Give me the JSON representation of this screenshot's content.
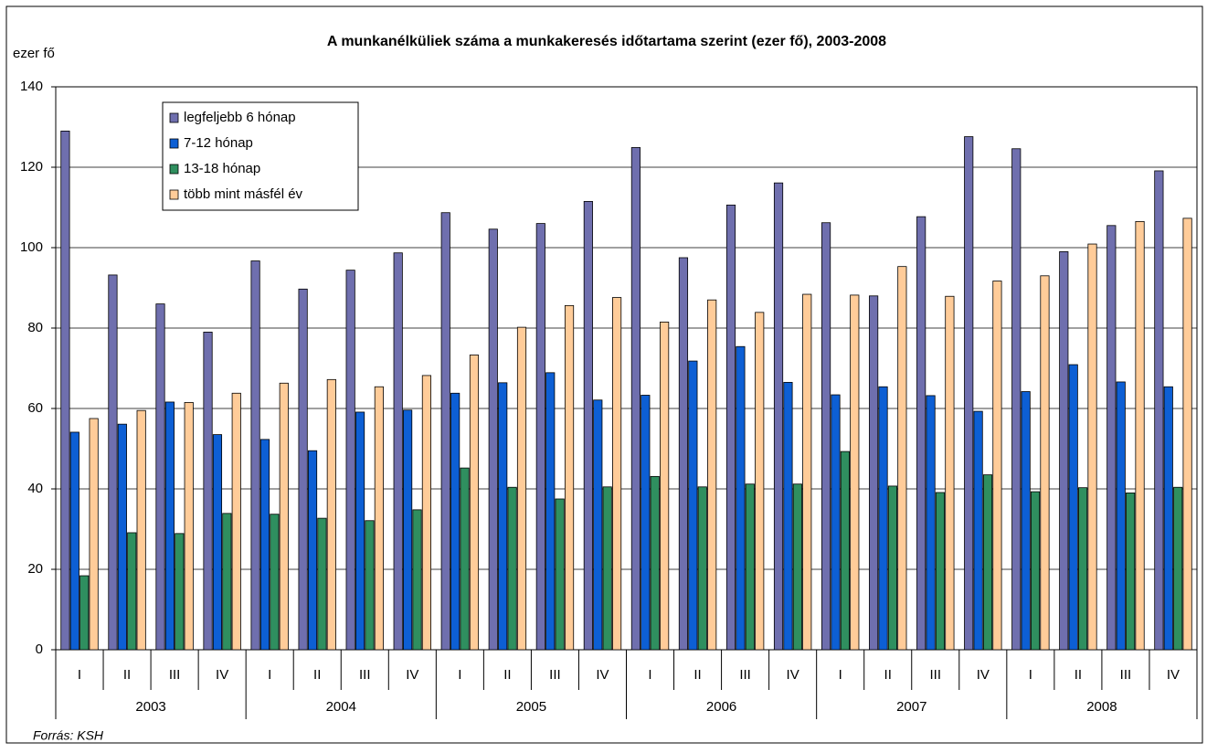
{
  "chart_data": {
    "type": "bar",
    "title": "A munkanélküliek száma a munkakeresés időtartama szerint (ezer fő), 2003-2008",
    "y_label": "ezer fő",
    "source": "Forrás: KSH",
    "categories": [
      "I",
      "II",
      "III",
      "IV",
      "I",
      "II",
      "III",
      "IV",
      "I",
      "II",
      "III",
      "IV",
      "I",
      "II",
      "III",
      "IV",
      "I",
      "II",
      "III",
      "IV",
      "I",
      "II",
      "III",
      "IV"
    ],
    "groups": [
      "2003",
      "2004",
      "2005",
      "2006",
      "2007",
      "2008"
    ],
    "series": [
      {
        "name": "legfeljebb 6 hónap",
        "color": "#6f6fae",
        "values": [
          129,
          93.2,
          86,
          79,
          96.7,
          89.7,
          94.4,
          98.7,
          108.7,
          104.6,
          106,
          111.5,
          124.9,
          97.5,
          110.6,
          116.1,
          106.2,
          88,
          107.7,
          127.6,
          124.6,
          99,
          105.5,
          119.1
        ]
      },
      {
        "name": "7-12 hónap",
        "color": "#0d5fd4",
        "values": [
          54.1,
          56.1,
          61.6,
          53.5,
          52.3,
          49.5,
          59.1,
          59.6,
          63.8,
          66.4,
          68.9,
          62.1,
          63.3,
          71.8,
          75.4,
          66.5,
          63.4,
          65.4,
          63.2,
          59.3,
          64.2,
          70.9,
          66.6,
          65.4
        ]
      },
      {
        "name": "13-18 hónap",
        "color": "#2f8f5f",
        "values": [
          18.4,
          29.1,
          28.9,
          33.9,
          33.7,
          32.7,
          32.1,
          34.8,
          45.2,
          40.4,
          37.5,
          40.5,
          43.1,
          40.5,
          41.2,
          41.2,
          49.3,
          40.7,
          39.1,
          43.5,
          39.3,
          40.3,
          39,
          40.4
        ]
      },
      {
        "name": "több mint másfél év",
        "color": "#ffcc99",
        "values": [
          57.5,
          59.5,
          61.5,
          63.8,
          66.3,
          67.2,
          65.4,
          68.2,
          73.3,
          80.2,
          85.6,
          87.6,
          81.5,
          87,
          83.9,
          88.4,
          88.2,
          95.3,
          87.9,
          91.7,
          93,
          100.9,
          106.5,
          107.3
        ]
      }
    ],
    "ylim": [
      0,
      140
    ],
    "yticks": [
      0,
      20,
      40,
      60,
      80,
      100,
      120,
      140
    ],
    "grid": true
  }
}
